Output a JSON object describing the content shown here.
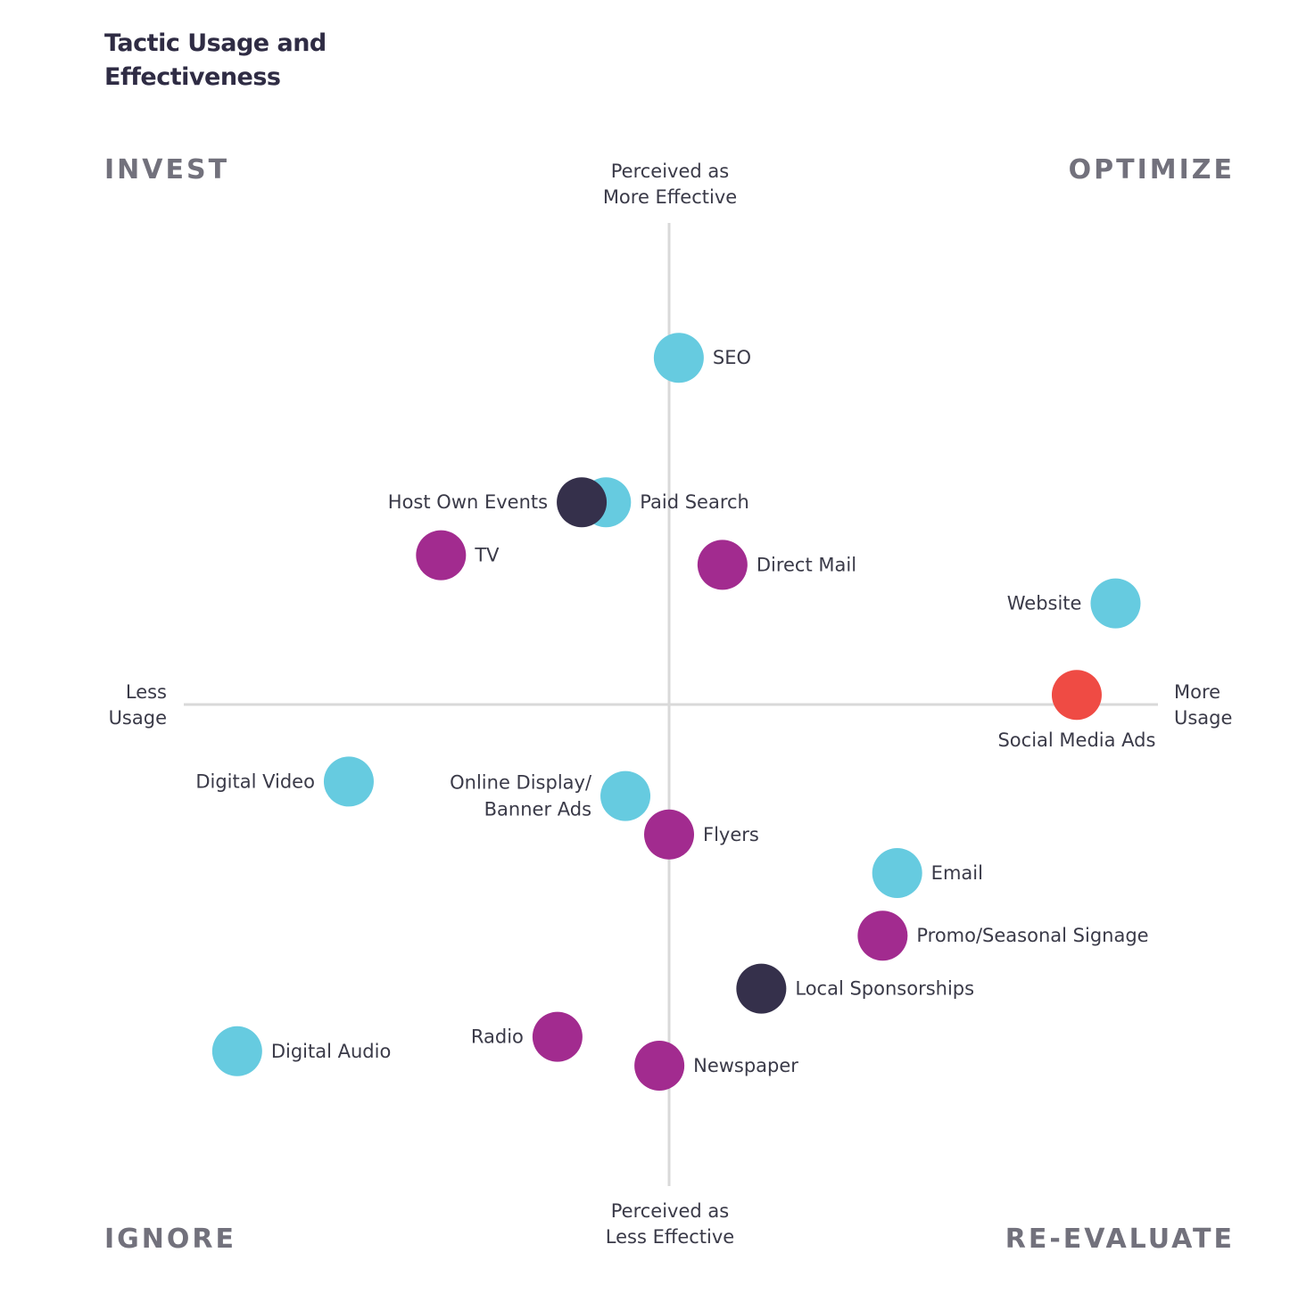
{
  "chart_data": {
    "type": "scatter",
    "title": "Tactic Usage and Effectiveness",
    "quadrants": {
      "top_left": "INVEST",
      "top_right": "OPTIMIZE",
      "bottom_left": "IGNORE",
      "bottom_right": "RE-EVALUATE"
    },
    "axes": {
      "y_top": "Perceived as\nMore Effective",
      "y_bottom": "Perceived as\nLess Effective",
      "x_left": "Less\nUsage",
      "x_right": "More\nUsage"
    },
    "xlim": [
      -100,
      100
    ],
    "ylim": [
      -100,
      100
    ],
    "grid": false,
    "colors": {
      "cyan": "#66cbe0",
      "purple": "#a22b8f",
      "navy": "#35304b",
      "red": "#ef4b44",
      "axis": "#d9d9d9"
    },
    "points": [
      {
        "label": "SEO",
        "x": 2,
        "y": 72,
        "color": "cyan",
        "label_pos": "right"
      },
      {
        "label": "Paid Search",
        "x": -13,
        "y": 42,
        "color": "cyan",
        "label_pos": "right"
      },
      {
        "label": "Host Own Events",
        "x": -18,
        "y": 42,
        "color": "navy",
        "label_pos": "left"
      },
      {
        "label": "TV",
        "x": -47,
        "y": 31,
        "color": "purple",
        "label_pos": "right"
      },
      {
        "label": "Direct Mail",
        "x": 11,
        "y": 29,
        "color": "purple",
        "label_pos": "right"
      },
      {
        "label": "Website",
        "x": 92,
        "y": 21,
        "color": "cyan",
        "label_pos": "left"
      },
      {
        "label": "Social Media Ads",
        "x": 84,
        "y": 2,
        "color": "red",
        "label_pos": "below"
      },
      {
        "label": "Digital Video",
        "x": -66,
        "y": -16,
        "color": "cyan",
        "label_pos": "left"
      },
      {
        "label": "Online Display/\nBanner Ads",
        "x": -9,
        "y": -19,
        "color": "cyan",
        "label_pos": "left"
      },
      {
        "label": "Flyers",
        "x": 0,
        "y": -27,
        "color": "purple",
        "label_pos": "right"
      },
      {
        "label": "Email",
        "x": 47,
        "y": -35,
        "color": "cyan",
        "label_pos": "right"
      },
      {
        "label": "Promo/Seasonal Signage",
        "x": 44,
        "y": -48,
        "color": "purple",
        "label_pos": "right"
      },
      {
        "label": "Local Sponsorships",
        "x": 19,
        "y": -59,
        "color": "navy",
        "label_pos": "right"
      },
      {
        "label": "Radio",
        "x": -23,
        "y": -69,
        "color": "purple",
        "label_pos": "left"
      },
      {
        "label": "Newspaper",
        "x": -2,
        "y": -75,
        "color": "purple",
        "label_pos": "right"
      },
      {
        "label": "Digital Audio",
        "x": -89,
        "y": -72,
        "color": "cyan",
        "label_pos": "right"
      }
    ]
  }
}
